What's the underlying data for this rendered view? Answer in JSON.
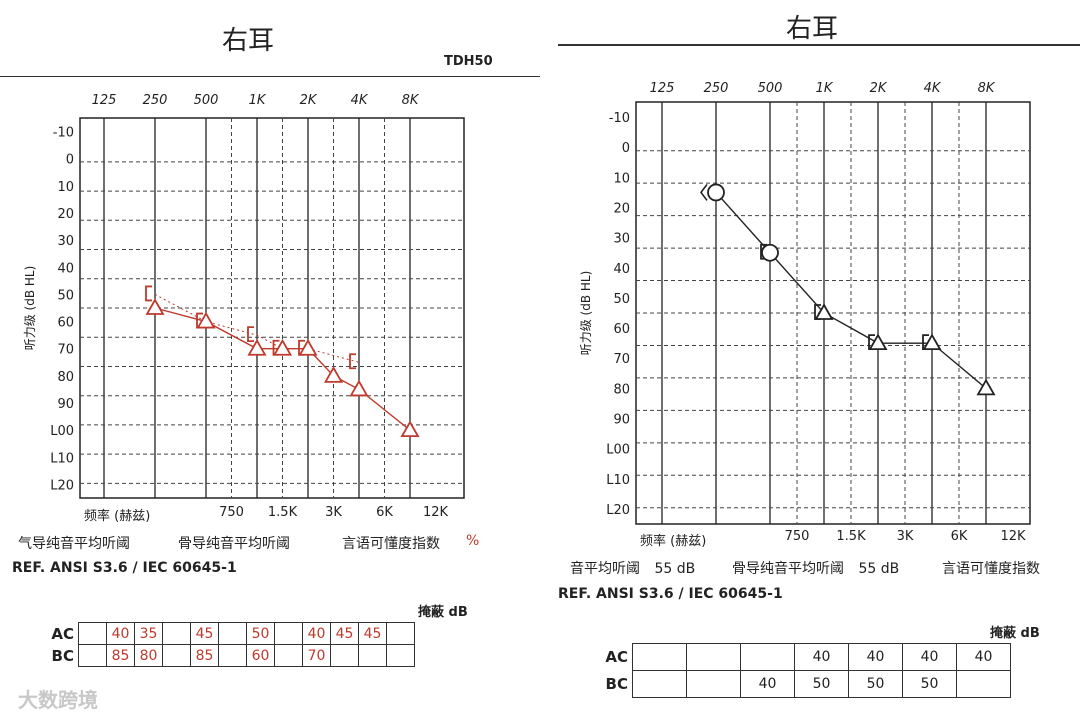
{
  "left": {
    "title": "右耳",
    "transducer": "TDH50",
    "x_top_labels": [
      "125",
      "250",
      "500",
      "1K",
      "2K",
      "4K",
      "8K"
    ],
    "x_bottom_labels": [
      "750",
      "1.5K",
      "3K",
      "6K",
      "12K"
    ],
    "freq_label": "频率 (赫兹)",
    "y_axis_label": "听力级 (dB HL)",
    "y_labels": [
      "-10",
      "0",
      "10",
      "20",
      "30",
      "40",
      "50",
      "60",
      "70",
      "80",
      "90",
      "L00",
      "L10",
      "L20"
    ],
    "legend_ac": "气导纯音平均听阈",
    "legend_bc": "骨导纯音平均听阈",
    "legend_speech": "言语可懂度指数",
    "legend_pct": "%",
    "reference": "REF. ANSI S3.6 / IEC 60645-1",
    "mask_header": "掩蔽 dB",
    "row_ac": "AC",
    "row_bc": "BC",
    "mask_ac": [
      "",
      "40",
      "35",
      "",
      "45",
      "",
      "50",
      "",
      "40",
      "45",
      "45",
      ""
    ],
    "mask_bc": [
      "",
      "85",
      "80",
      "",
      "85",
      "",
      "60",
      "",
      "70",
      "",
      "",
      ""
    ],
    "color": "#c0392b"
  },
  "right": {
    "title": "右耳",
    "x_top_labels": [
      "125",
      "250",
      "500",
      "1K",
      "2K",
      "4K",
      "8K"
    ],
    "x_bottom_labels": [
      "750",
      "1.5K",
      "3K",
      "6K",
      "12K"
    ],
    "freq_label": "频率 (赫兹)",
    "y_axis_label": "听力级 (dB HL)",
    "y_labels": [
      "-10",
      "0",
      "10",
      "20",
      "30",
      "40",
      "50",
      "60",
      "70",
      "80",
      "90",
      "L00",
      "L10",
      "L20"
    ],
    "legend_ac": "音平均听阈",
    "legend_ac_value": "55 dB",
    "legend_bc": "骨导纯音平均听阈",
    "legend_bc_value": "55 dB",
    "legend_speech": "言语可懂度指数",
    "reference": "REF. ANSI S3.6 / IEC 60645-1",
    "mask_header": "掩蔽 dB",
    "row_ac": "AC",
    "row_bc": "BC",
    "mask_ac": [
      "",
      "",
      "",
      "40",
      "40",
      "40",
      "40"
    ],
    "mask_bc": [
      "",
      "",
      "40",
      "50",
      "50",
      "50",
      ""
    ],
    "color": "#222222"
  },
  "watermark": "大数跨境",
  "chart_data": [
    {
      "type": "line",
      "title": "右耳",
      "xlabel": "频率 (赫兹)",
      "ylabel": "听力级 (dB HL)",
      "x_unit": "octave index (0=125Hz, 1=250, 2=500, 3=1K, 4=2K, 5=4K, 6=8K)",
      "ylim": [
        -10,
        120
      ],
      "y_inverted": true,
      "series": [
        {
          "name": "AC",
          "symbol": "triangle",
          "x": [
            1,
            2,
            3,
            3.5,
            4,
            4.5,
            5,
            6
          ],
          "y": [
            55,
            60,
            70,
            70,
            70,
            80,
            85,
            100
          ]
        },
        {
          "name": "BC",
          "symbol": "bracket",
          "x": [
            1,
            2,
            3,
            3.5,
            4,
            5
          ],
          "y": [
            50,
            60,
            65,
            70,
            70,
            75
          ]
        }
      ]
    },
    {
      "type": "line",
      "title": "右耳",
      "xlabel": "频率 (赫兹)",
      "ylabel": "听力级 (dB HL)",
      "x_unit": "octave index (0=125Hz, 1=250, 2=500, 3=1K, 4=2K, 5=4K, 6=8K)",
      "ylim": [
        -10,
        120
      ],
      "y_inverted": true,
      "series": [
        {
          "name": "AC",
          "symbol": "circle/triangle",
          "x": [
            1,
            2,
            3,
            4,
            5,
            6
          ],
          "y": [
            15,
            35,
            55,
            65,
            65,
            80
          ]
        },
        {
          "name": "BC",
          "symbol": "bracket",
          "x": [
            2,
            3,
            4,
            5
          ],
          "y": [
            35,
            55,
            65,
            65
          ]
        }
      ]
    }
  ]
}
